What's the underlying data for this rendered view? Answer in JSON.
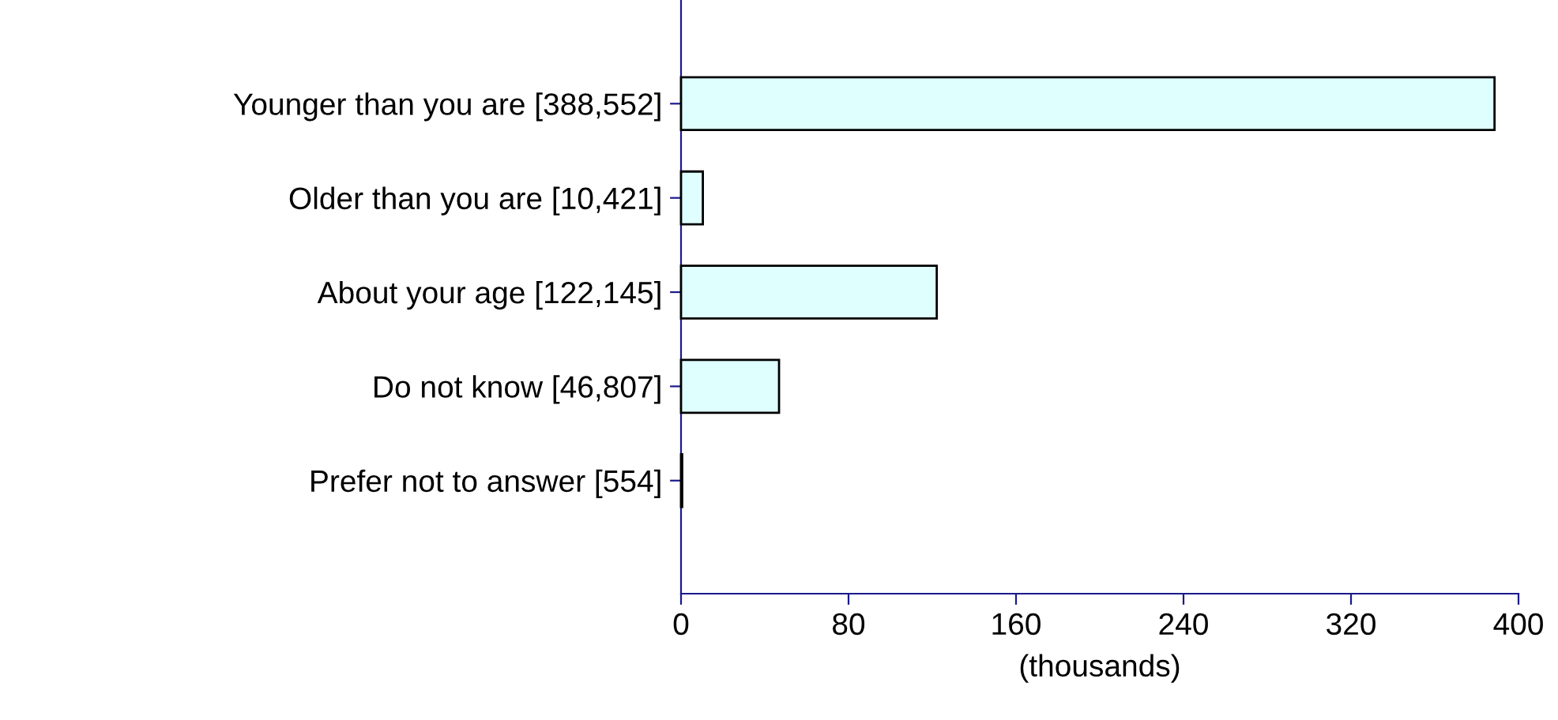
{
  "chart_data": {
    "type": "bar",
    "orientation": "horizontal",
    "xlabel": "(thousands)",
    "categories": [
      "Younger than you are [388,552]",
      "Older than you are [10,421]",
      "About your age [122,145]",
      "Do not know [46,807]",
      "Prefer not to answer [554]"
    ],
    "values": [
      388.552,
      10.421,
      122.145,
      46.807,
      0.554
    ],
    "color": "#dfffff",
    "xlim": [
      0,
      400
    ],
    "xticks": [
      0,
      80,
      160,
      240,
      320,
      400
    ],
    "grid": false,
    "legend": false
  }
}
